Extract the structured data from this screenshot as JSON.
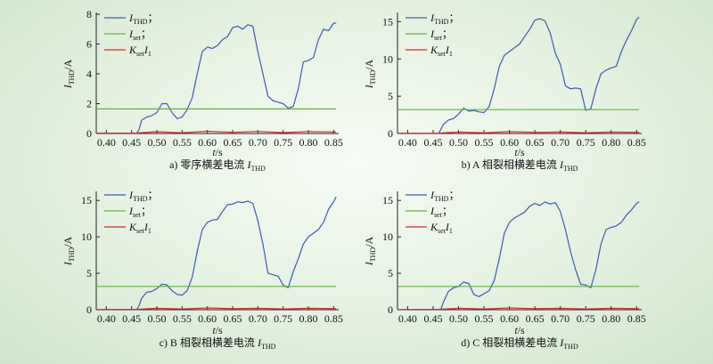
{
  "chart_data": [
    {
      "type": "line",
      "caption": {
        "prefix": "a) 零序横差电流 ",
        "var": "I",
        "sub": "THD"
      },
      "ylabel": {
        "var": "I",
        "sub": "THD",
        "unit": "/A"
      },
      "xlabel": {
        "var": "t",
        "unit": "/s"
      },
      "xlim": [
        0.38,
        0.86
      ],
      "xticks": [
        "0.40",
        "0.45",
        "0.50",
        "0.55",
        "0.60",
        "0.65",
        "0.70",
        "0.75",
        "0.80",
        "0.85"
      ],
      "ylim": [
        0,
        8
      ],
      "yticks": [
        "0",
        "2",
        "4",
        "6",
        "8"
      ],
      "legend": [
        {
          "var": "I",
          "sub": "THD",
          "suffix": "；",
          "color": "#3b5bb5"
        },
        {
          "var": "I",
          "sub": "set",
          "suffix": "；",
          "color": "#5fb53a"
        },
        {
          "var": "K",
          "sub": "set",
          "var2": "I",
          "sub2": "1",
          "suffix": "",
          "color": "#d42a2a"
        }
      ],
      "series": [
        {
          "color": "#3b5bb5",
          "x": [
            0.38,
            0.46,
            0.465,
            0.47,
            0.48,
            0.49,
            0.5,
            0.505,
            0.51,
            0.52,
            0.53,
            0.54,
            0.55,
            0.56,
            0.57,
            0.58,
            0.59,
            0.6,
            0.61,
            0.62,
            0.63,
            0.64,
            0.65,
            0.66,
            0.67,
            0.68,
            0.69,
            0.7,
            0.71,
            0.72,
            0.73,
            0.74,
            0.75,
            0.76,
            0.77,
            0.78,
            0.79,
            0.8,
            0.81,
            0.82,
            0.83,
            0.84,
            0.85,
            0.855
          ],
          "y": [
            0,
            0,
            0.3,
            0.9,
            1.1,
            1.2,
            1.4,
            1.7,
            2.0,
            2.0,
            1.4,
            1.0,
            1.1,
            1.6,
            2.4,
            4.0,
            5.5,
            5.8,
            5.7,
            5.9,
            6.3,
            6.5,
            7.1,
            7.2,
            7.0,
            7.3,
            7.2,
            5.5,
            4.0,
            2.5,
            2.2,
            2.1,
            2.0,
            1.7,
            1.8,
            3.0,
            4.8,
            4.9,
            5.1,
            6.3,
            7.0,
            6.9,
            7.4,
            7.4
          ]
        },
        {
          "color": "#5fb53a",
          "x": [
            0.38,
            0.855
          ],
          "y": [
            1.65,
            1.65
          ]
        },
        {
          "color": "#d42a2a",
          "x": [
            0.38,
            0.46,
            0.5,
            0.55,
            0.6,
            0.65,
            0.7,
            0.75,
            0.8,
            0.855
          ],
          "y": [
            0.02,
            0.03,
            0.12,
            0.05,
            0.15,
            0.08,
            0.14,
            0.06,
            0.13,
            0.1
          ]
        }
      ]
    },
    {
      "type": "line",
      "caption": {
        "prefix": "b) A 相裂相横差电流 ",
        "var": "I",
        "sub": "THD"
      },
      "ylabel": {
        "var": "I",
        "sub": "THD",
        "unit": "/A"
      },
      "xlabel": {
        "var": "t",
        "unit": "/s"
      },
      "xlim": [
        0.38,
        0.86
      ],
      "xticks": [
        "0.40",
        "0.45",
        "0.50",
        "0.55",
        "0.60",
        "0.65",
        "0.70",
        "0.75",
        "0.80",
        "0.85"
      ],
      "ylim": [
        0,
        16
      ],
      "yticks": [
        "0",
        "5",
        "10",
        "15"
      ],
      "legend": [
        {
          "var": "I",
          "sub": "THD",
          "suffix": "；",
          "color": "#3b5bb5"
        },
        {
          "var": "I",
          "sub": "set",
          "suffix": "；",
          "color": "#5fb53a"
        },
        {
          "var": "K",
          "sub": "set",
          "var2": "I",
          "sub2": "1",
          "suffix": "",
          "color": "#d42a2a"
        }
      ],
      "series": [
        {
          "color": "#3b5bb5",
          "x": [
            0.38,
            0.46,
            0.465,
            0.47,
            0.48,
            0.49,
            0.5,
            0.51,
            0.52,
            0.53,
            0.54,
            0.55,
            0.56,
            0.57,
            0.58,
            0.59,
            0.6,
            0.61,
            0.62,
            0.63,
            0.64,
            0.65,
            0.66,
            0.67,
            0.68,
            0.69,
            0.7,
            0.71,
            0.72,
            0.73,
            0.74,
            0.75,
            0.76,
            0.77,
            0.78,
            0.79,
            0.8,
            0.81,
            0.82,
            0.83,
            0.84,
            0.85,
            0.855
          ],
          "y": [
            0,
            0,
            0.5,
            1.2,
            1.8,
            2.0,
            2.6,
            3.4,
            3.0,
            3.1,
            2.9,
            2.8,
            3.6,
            6.0,
            9.0,
            10.5,
            11.0,
            11.5,
            12.0,
            13.0,
            14.0,
            15.2,
            15.4,
            15.1,
            13.5,
            10.8,
            9.3,
            6.4,
            6.0,
            6.1,
            6.0,
            3.1,
            3.3,
            6.0,
            8.0,
            8.5,
            8.8,
            9.0,
            11.0,
            12.5,
            13.8,
            15.3,
            15.6
          ]
        },
        {
          "color": "#5fb53a",
          "x": [
            0.38,
            0.855
          ],
          "y": [
            3.2,
            3.2
          ]
        },
        {
          "color": "#d42a2a",
          "x": [
            0.38,
            0.46,
            0.5,
            0.55,
            0.6,
            0.65,
            0.7,
            0.75,
            0.8,
            0.855
          ],
          "y": [
            0.03,
            0.05,
            0.2,
            0.1,
            0.25,
            0.15,
            0.2,
            0.1,
            0.2,
            0.15
          ]
        }
      ]
    },
    {
      "type": "line",
      "caption": {
        "prefix": "c) B 相裂相横差电流 ",
        "var": "I",
        "sub": "THD"
      },
      "ylabel": {
        "var": "I",
        "sub": "THD",
        "unit": "/A"
      },
      "xlabel": {
        "var": "t",
        "unit": "/s"
      },
      "xlim": [
        0.38,
        0.86
      ],
      "xticks": [
        "0.40",
        "0.45",
        "0.50",
        "0.55",
        "0.60",
        "0.65",
        "0.70",
        "0.75",
        "0.80",
        "0.85"
      ],
      "ylim": [
        0,
        16
      ],
      "yticks": [
        "0",
        "5",
        "10",
        "15"
      ],
      "legend": [
        {
          "var": "I",
          "sub": "THD",
          "suffix": "；",
          "color": "#3b5bb5"
        },
        {
          "var": "I",
          "sub": "set",
          "suffix": "；",
          "color": "#5fb53a"
        },
        {
          "var": "K",
          "sub": "set",
          "var2": "I",
          "sub2": "1",
          "suffix": "",
          "color": "#d42a2a"
        }
      ],
      "series": [
        {
          "color": "#3b5bb5",
          "x": [
            0.38,
            0.46,
            0.465,
            0.47,
            0.48,
            0.49,
            0.5,
            0.51,
            0.52,
            0.53,
            0.54,
            0.55,
            0.56,
            0.57,
            0.58,
            0.59,
            0.6,
            0.61,
            0.62,
            0.63,
            0.64,
            0.65,
            0.66,
            0.67,
            0.68,
            0.69,
            0.7,
            0.71,
            0.72,
            0.73,
            0.74,
            0.75,
            0.76,
            0.77,
            0.78,
            0.79,
            0.8,
            0.81,
            0.82,
            0.83,
            0.84,
            0.85,
            0.855
          ],
          "y": [
            0,
            0,
            0.6,
            1.6,
            2.4,
            2.5,
            2.9,
            3.5,
            3.4,
            2.6,
            2.1,
            2.0,
            2.6,
            4.5,
            8.0,
            11.0,
            12.0,
            12.3,
            12.4,
            13.5,
            14.4,
            14.5,
            14.8,
            14.7,
            14.9,
            14.6,
            12.2,
            9.0,
            5.0,
            4.8,
            4.6,
            3.4,
            3.0,
            5.2,
            7.0,
            9.0,
            10.0,
            10.5,
            11.0,
            12.0,
            13.8,
            14.8,
            15.5
          ]
        },
        {
          "color": "#5fb53a",
          "x": [
            0.38,
            0.855
          ],
          "y": [
            3.2,
            3.2
          ]
        },
        {
          "color": "#d42a2a",
          "x": [
            0.38,
            0.46,
            0.5,
            0.55,
            0.6,
            0.65,
            0.7,
            0.75,
            0.8,
            0.855
          ],
          "y": [
            0.03,
            0.05,
            0.2,
            0.1,
            0.25,
            0.15,
            0.2,
            0.1,
            0.2,
            0.15
          ]
        }
      ]
    },
    {
      "type": "line",
      "caption": {
        "prefix": "d) C 相裂相横差电流 ",
        "var": "I",
        "sub": "THD"
      },
      "ylabel": {
        "var": "I",
        "sub": "THD",
        "unit": "/A"
      },
      "xlabel": {
        "var": "t",
        "unit": "/s"
      },
      "xlim": [
        0.38,
        0.86
      ],
      "xticks": [
        "0.40",
        "0.45",
        "0.50",
        "0.55",
        "0.60",
        "0.65",
        "0.70",
        "0.75",
        "0.80",
        "0.85"
      ],
      "ylim": [
        0,
        16
      ],
      "yticks": [
        "0",
        "5",
        "10",
        "15"
      ],
      "legend": [
        {
          "var": "I",
          "sub": "THD",
          "suffix": "；",
          "color": "#3b5bb5"
        },
        {
          "var": "I",
          "sub": "set",
          "suffix": "；",
          "color": "#5fb53a"
        },
        {
          "var": "K",
          "sub": "set",
          "var2": "I",
          "sub2": "1",
          "suffix": "",
          "color": "#d42a2a"
        }
      ],
      "series": [
        {
          "color": "#3b5bb5",
          "x": [
            0.38,
            0.465,
            0.47,
            0.48,
            0.49,
            0.5,
            0.51,
            0.52,
            0.53,
            0.54,
            0.55,
            0.56,
            0.57,
            0.58,
            0.59,
            0.6,
            0.61,
            0.62,
            0.63,
            0.64,
            0.65,
            0.66,
            0.67,
            0.68,
            0.69,
            0.7,
            0.71,
            0.72,
            0.73,
            0.74,
            0.75,
            0.76,
            0.77,
            0.78,
            0.79,
            0.8,
            0.81,
            0.82,
            0.83,
            0.84,
            0.85,
            0.855
          ],
          "y": [
            0,
            0,
            1.0,
            2.5,
            3.0,
            3.2,
            3.8,
            3.6,
            2.1,
            1.8,
            2.2,
            2.6,
            4.0,
            7.0,
            10.5,
            12.0,
            12.6,
            13.0,
            13.4,
            14.2,
            14.6,
            14.3,
            14.8,
            14.5,
            14.7,
            13.5,
            11.0,
            8.0,
            5.5,
            3.5,
            3.4,
            3.0,
            5.5,
            9.0,
            11.0,
            11.3,
            11.5,
            12.0,
            13.0,
            13.7,
            14.6,
            14.8
          ]
        },
        {
          "color": "#5fb53a",
          "x": [
            0.38,
            0.855
          ],
          "y": [
            3.2,
            3.2
          ]
        },
        {
          "color": "#d42a2a",
          "x": [
            0.38,
            0.46,
            0.5,
            0.55,
            0.6,
            0.65,
            0.7,
            0.75,
            0.8,
            0.855
          ],
          "y": [
            0.03,
            0.05,
            0.2,
            0.1,
            0.25,
            0.15,
            0.2,
            0.1,
            0.2,
            0.15
          ]
        }
      ]
    }
  ]
}
